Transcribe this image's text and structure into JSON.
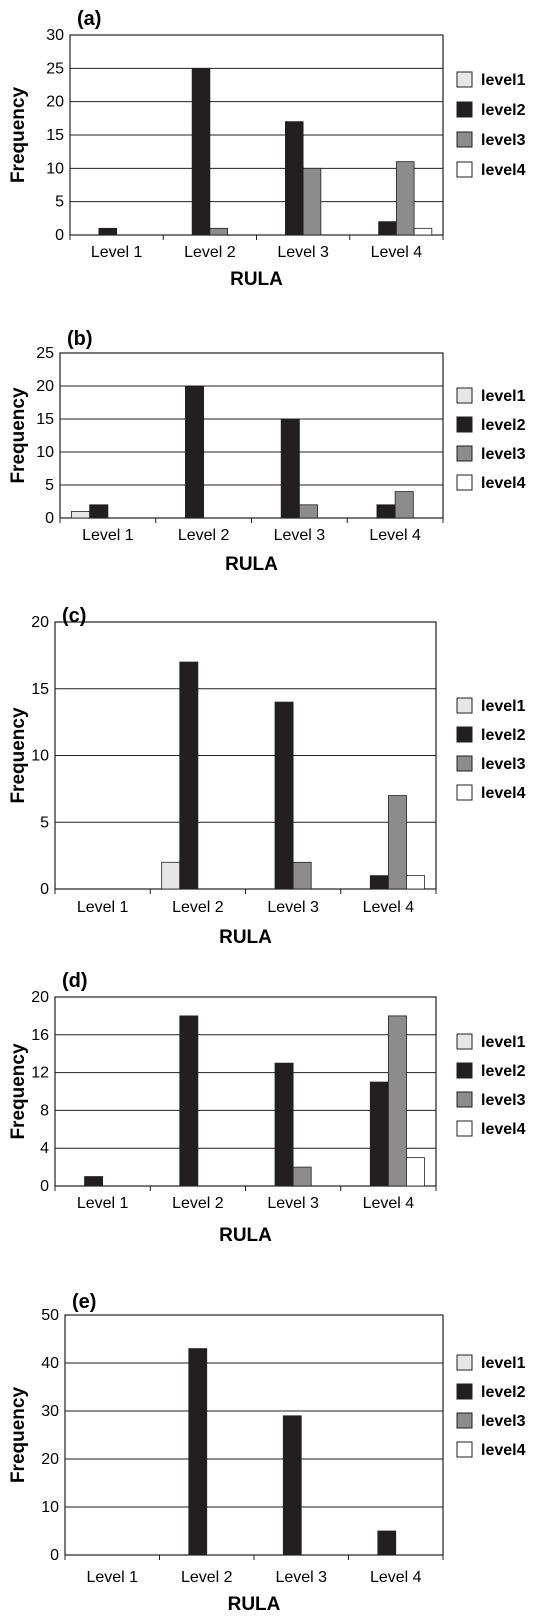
{
  "legend": [
    "level1",
    "level2",
    "level3",
    "level4"
  ],
  "colors": {
    "level1": "#e6e6e6",
    "level2": "#231f20",
    "level3": "#8c8c8c",
    "level4": "#ffffff"
  },
  "chart_data": [
    {
      "type": "bar",
      "panel": "(a)",
      "categories": [
        "Level 1",
        "Level 2",
        "Level 3",
        "Level 4"
      ],
      "series": [
        {
          "name": "level1",
          "values": [
            0,
            0,
            0,
            0
          ]
        },
        {
          "name": "level2",
          "values": [
            1,
            25,
            17,
            2
          ]
        },
        {
          "name": "level3",
          "values": [
            0,
            1,
            10,
            11
          ]
        },
        {
          "name": "level4",
          "values": [
            0,
            0,
            0,
            1
          ]
        }
      ],
      "xlabel": "RULA",
      "ylabel": "Frequency",
      "ylim": [
        0,
        30
      ],
      "yticks": [
        0,
        5,
        10,
        15,
        20,
        25,
        30
      ],
      "grid": true,
      "legend_position": "right"
    },
    {
      "type": "bar",
      "panel": "(b)",
      "categories": [
        "Level 1",
        "Level 2",
        "Level 3",
        "Level 4"
      ],
      "series": [
        {
          "name": "level1",
          "values": [
            1,
            0,
            0,
            0
          ]
        },
        {
          "name": "level2",
          "values": [
            2,
            20,
            15,
            2
          ]
        },
        {
          "name": "level3",
          "values": [
            0,
            0,
            2,
            4
          ]
        },
        {
          "name": "level4",
          "values": [
            0,
            0,
            0,
            0
          ]
        }
      ],
      "xlabel": "RULA",
      "ylabel": "Frequency",
      "ylim": [
        0,
        25
      ],
      "yticks": [
        0,
        5,
        10,
        15,
        20,
        25
      ],
      "grid": true,
      "legend_position": "right"
    },
    {
      "type": "bar",
      "panel": "(c)",
      "categories": [
        "Level 1",
        "Level 2",
        "Level 3",
        "Level 4"
      ],
      "series": [
        {
          "name": "level1",
          "values": [
            0,
            2,
            0,
            0
          ]
        },
        {
          "name": "level2",
          "values": [
            0,
            17,
            14,
            1
          ]
        },
        {
          "name": "level3",
          "values": [
            0,
            0,
            2,
            7
          ]
        },
        {
          "name": "level4",
          "values": [
            0,
            0,
            0,
            1
          ]
        }
      ],
      "xlabel": "RULA",
      "ylabel": "Frequency",
      "ylim": [
        0,
        20
      ],
      "yticks": [
        0,
        5,
        10,
        15,
        20
      ],
      "grid": true,
      "legend_position": "right"
    },
    {
      "type": "bar",
      "panel": "(d)",
      "categories": [
        "Level 1",
        "Level 2",
        "Level 3",
        "Level 4"
      ],
      "series": [
        {
          "name": "level1",
          "values": [
            0,
            0,
            0,
            0
          ]
        },
        {
          "name": "level2",
          "values": [
            1,
            18,
            13,
            11
          ]
        },
        {
          "name": "level3",
          "values": [
            0,
            0,
            2,
            18
          ]
        },
        {
          "name": "level4",
          "values": [
            0,
            0,
            0,
            3
          ]
        }
      ],
      "xlabel": "RULA",
      "ylabel": "Frequency",
      "ylim": [
        0,
        20
      ],
      "yticks": [
        0,
        4,
        8,
        12,
        16,
        20
      ],
      "grid": true,
      "legend_position": "right"
    },
    {
      "type": "bar",
      "panel": "(e)",
      "categories": [
        "Level 1",
        "Level 2",
        "Level 3",
        "Level 4"
      ],
      "series": [
        {
          "name": "level1",
          "values": [
            0,
            0,
            0,
            0
          ]
        },
        {
          "name": "level2",
          "values": [
            0,
            43,
            29,
            5
          ]
        },
        {
          "name": "level3",
          "values": [
            0,
            0,
            0,
            0
          ]
        },
        {
          "name": "level4",
          "values": [
            0,
            0,
            0,
            0
          ]
        }
      ],
      "xlabel": "RULA",
      "ylabel": "Frequency",
      "ylim": [
        0,
        50
      ],
      "yticks": [
        0,
        10,
        20,
        30,
        40,
        50
      ],
      "grid": true,
      "legend_position": "right"
    }
  ]
}
